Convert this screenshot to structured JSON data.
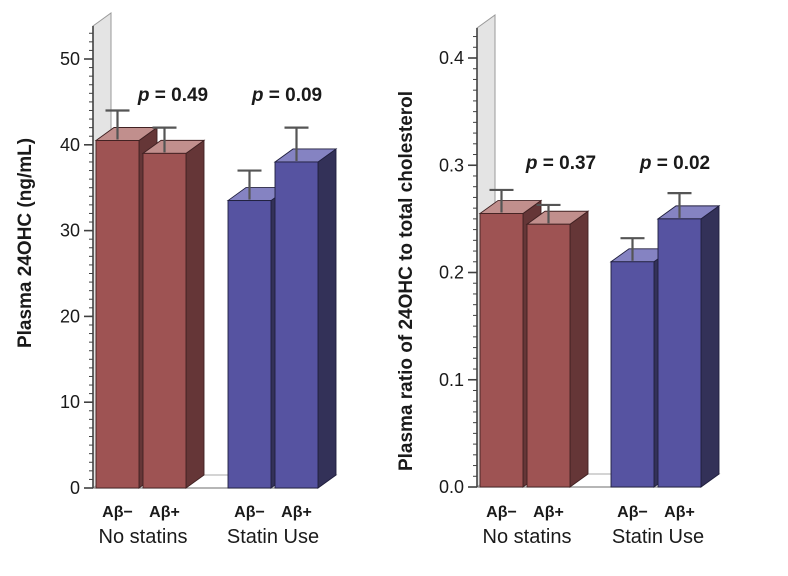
{
  "figure": {
    "background": "#ffffff",
    "colors": {
      "red": {
        "front": "#9e5353",
        "top": "#c18f8d",
        "side": "#653637",
        "edge": "#402122"
      },
      "blue": {
        "front": "#5653a1",
        "top": "#8583c2",
        "side": "#333158",
        "edge": "#201f3e"
      },
      "wall_fill": "#e4e4e4",
      "wall_edge": "#9a9a9a",
      "floor_fill": "#ffffff",
      "floor_edge": "#aaaaaa",
      "axis": "#404040",
      "baseline": "#8a8a8a",
      "error_bar": "#555555",
      "text": "#1a1a1a"
    }
  },
  "chart_data": [
    {
      "type": "bar",
      "title": "",
      "xlabel": "",
      "ylabel": "Plasma 24OHC (ng/mL)",
      "categories": [
        "Aβ−",
        "Aβ+",
        "Aβ−",
        "Aβ+"
      ],
      "group_labels": [
        "No statins",
        "Statin Use"
      ],
      "values": [
        40.5,
        39,
        33.5,
        38
      ],
      "errors_up": [
        3.5,
        3,
        3.5,
        4
      ],
      "bar_color_keys": [
        "red",
        "red",
        "blue",
        "blue"
      ],
      "p_labels": [
        "p = 0.49",
        "p = 0.09"
      ],
      "ylim": [
        0,
        53.8
      ],
      "yticks": {
        "values": [
          0,
          10,
          20,
          30,
          40,
          50
        ],
        "labels": [
          "0",
          "10",
          "20",
          "30",
          "40",
          "50"
        ]
      },
      "minor_tick_step": 1,
      "grid": false,
      "legend": "none",
      "style": "3d-bars"
    },
    {
      "type": "bar",
      "title": "",
      "xlabel": "",
      "ylabel": "Plasma ratio of 24OHC to total cholesterol",
      "categories": [
        "Aβ−",
        "Aβ+",
        "Aβ−",
        "Aβ+"
      ],
      "group_labels": [
        "No statins",
        "Statin Use"
      ],
      "values": [
        0.255,
        0.245,
        0.21,
        0.25
      ],
      "errors_up": [
        0.022,
        0.018,
        0.022,
        0.024
      ],
      "bar_color_keys": [
        "red",
        "red",
        "blue",
        "blue"
      ],
      "p_labels": [
        "p = 0.37",
        "p = 0.02"
      ],
      "ylim": [
        0,
        0.428
      ],
      "yticks": {
        "values": [
          0,
          0.1,
          0.2,
          0.3,
          0.4
        ],
        "labels": [
          "0.0",
          "0.1",
          "0.2",
          "0.3",
          "0.4"
        ]
      },
      "minor_tick_step": 0.01,
      "grid": false,
      "legend": "none",
      "style": "3d-bars"
    }
  ]
}
